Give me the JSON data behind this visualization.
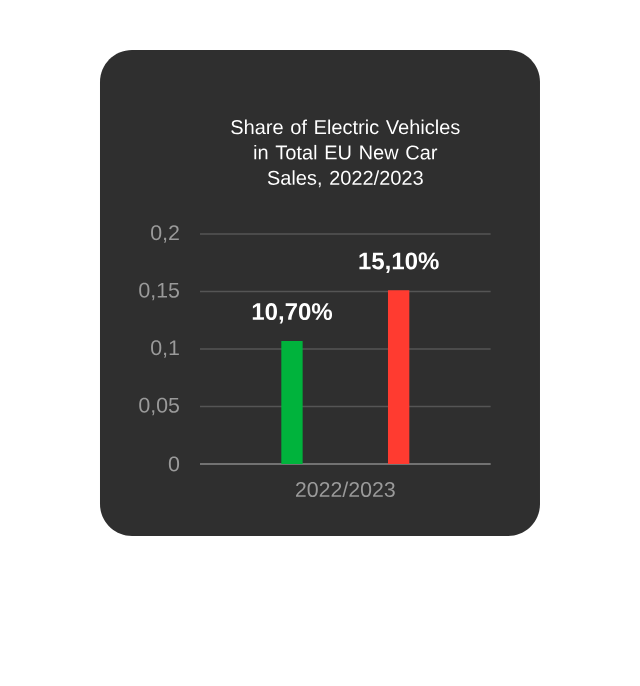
{
  "chart_data": {
    "type": "bar",
    "title": "Share of Electric Vehicles in Total EU New Car Sales, 2022/2023",
    "categories": [
      "2022/2023"
    ],
    "series": [
      {
        "color": "#00b33c",
        "values": [
          0.107
        ],
        "value_labels": [
          "10,70%"
        ]
      },
      {
        "color": "#ff3b30",
        "values": [
          0.151
        ],
        "value_labels": [
          "15,10%"
        ]
      }
    ],
    "ylim": [
      0,
      0.2
    ],
    "yticks": [
      0,
      {
        "value": 0.05,
        "label": "0,05"
      },
      {
        "value": 0.1,
        "label": "0,1"
      },
      {
        "value": 0.15,
        "label": "0,15"
      },
      {
        "value": 0.2,
        "label": "0,2"
      }
    ],
    "grid": "y"
  }
}
